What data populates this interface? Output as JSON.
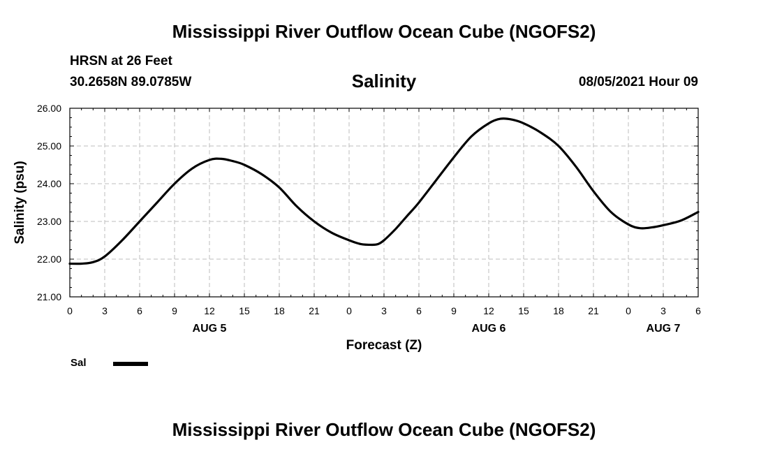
{
  "header": {
    "title": "Mississippi River Outflow Ocean Cube (NGOFS2)",
    "station": "HRSN at 26 Feet",
    "coords": "30.2658N  89.0785W",
    "datetime": "08/05/2021 Hour 09"
  },
  "footer": {
    "title": "Mississippi River Outflow Ocean Cube (NGOFS2)"
  },
  "legend": {
    "label": "Sal",
    "color": "#000000"
  },
  "chart_data": {
    "type": "line",
    "title": "Salinity",
    "xlabel": "Forecast (Z)",
    "ylabel": "Salinity (psu)",
    "xlim": [
      0,
      54
    ],
    "ylim": [
      21,
      26
    ],
    "yticks": [
      21,
      22,
      23,
      24,
      25,
      26
    ],
    "ytick_labels": [
      "21.00",
      "22.00",
      "23.00",
      "24.00",
      "25.00",
      "26.00"
    ],
    "xticks": [
      0,
      3,
      6,
      9,
      12,
      15,
      18,
      21,
      24,
      27,
      30,
      33,
      36,
      39,
      42,
      45,
      48,
      51,
      54
    ],
    "xtick_labels": [
      "0",
      "3",
      "6",
      "9",
      "12",
      "15",
      "18",
      "21",
      "0",
      "3",
      "6",
      "9",
      "12",
      "15",
      "18",
      "21",
      "0",
      "3",
      "6"
    ],
    "day_labels": [
      {
        "x": 12,
        "label": "AUG 5"
      },
      {
        "x": 36,
        "label": "AUG 6"
      },
      {
        "x": 51,
        "label": "AUG 7"
      }
    ],
    "grid": true,
    "series": [
      {
        "name": "Sal",
        "color": "#000000",
        "x": [
          0,
          1,
          2,
          3,
          4.5,
          6,
          7.5,
          9,
          10.5,
          12,
          13,
          14,
          15,
          16.5,
          18,
          19.5,
          21,
          22.5,
          24,
          25,
          26,
          26.5,
          27,
          28,
          29,
          30,
          31.5,
          33,
          34.5,
          36,
          37,
          38,
          39,
          40.5,
          42,
          43.5,
          45,
          46.5,
          48,
          49,
          50,
          51,
          52.5,
          54
        ],
        "values": [
          21.88,
          21.88,
          21.92,
          22.07,
          22.5,
          23.0,
          23.5,
          24.0,
          24.4,
          24.63,
          24.66,
          24.6,
          24.5,
          24.25,
          23.9,
          23.4,
          23.0,
          22.7,
          22.5,
          22.4,
          22.38,
          22.4,
          22.5,
          22.8,
          23.15,
          23.5,
          24.1,
          24.7,
          25.25,
          25.6,
          25.72,
          25.7,
          25.6,
          25.35,
          25.0,
          24.45,
          23.8,
          23.25,
          22.92,
          22.82,
          22.84,
          22.9,
          23.02,
          23.25
        ]
      }
    ]
  }
}
